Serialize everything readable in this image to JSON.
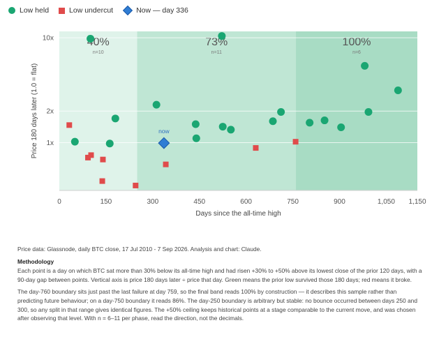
{
  "legend": {
    "held": "Low held",
    "undercut": "Low undercut",
    "now": "Now — day 336"
  },
  "colors": {
    "held": "#1aa672",
    "undercut": "#e04b4b",
    "now": "#2f7dd4",
    "band1": "#dff3ea",
    "band2": "#bfe6d4",
    "band3": "#a8dcc4"
  },
  "chart_data": {
    "type": "scatter",
    "xlabel": "Days since the all-time high",
    "ylabel": "Price 180 days later (1.0 = flat)",
    "xlim": [
      0,
      1150
    ],
    "ylim": [
      0.35,
      11.5
    ],
    "yscale": "log",
    "x_ticks": [
      0,
      150,
      300,
      450,
      600,
      750,
      900,
      1050,
      1150
    ],
    "x_tick_labels": [
      "0",
      "150",
      "300",
      "450",
      "600",
      "750",
      "900",
      "1,050",
      "1,150"
    ],
    "y_ticks": [
      1,
      2,
      10
    ],
    "y_tick_labels": [
      "1x",
      "2x",
      "10x"
    ],
    "bands": [
      {
        "from": 0,
        "to": 250,
        "pct": "40%",
        "n": "n=10"
      },
      {
        "from": 250,
        "to": 760,
        "pct": "73%",
        "n": "n=11"
      },
      {
        "from": 760,
        "to": 1150,
        "pct": "100%",
        "n": "n=6"
      }
    ],
    "series": [
      {
        "name": "Low held",
        "marker": "circle",
        "points": [
          [
            100,
            9.8
          ],
          [
            50,
            1.02
          ],
          [
            162,
            0.98
          ],
          [
            180,
            1.7
          ],
          [
            312,
            2.3
          ],
          [
            438,
            1.5
          ],
          [
            440,
            1.1
          ],
          [
            522,
            10.4
          ],
          [
            525,
            1.42
          ],
          [
            551,
            1.33
          ],
          [
            686,
            1.6
          ],
          [
            712,
            1.96
          ],
          [
            804,
            1.55
          ],
          [
            852,
            1.63
          ],
          [
            905,
            1.4
          ],
          [
            981,
            5.4
          ],
          [
            993,
            1.96
          ],
          [
            1088,
            3.15
          ]
        ]
      },
      {
        "name": "Low undercut",
        "marker": "square",
        "points": [
          [
            32,
            1.47
          ],
          [
            92,
            0.72
          ],
          [
            102,
            0.76
          ],
          [
            140,
            0.69
          ],
          [
            138,
            0.43
          ],
          [
            245,
            0.39
          ],
          [
            342,
            0.62
          ],
          [
            631,
            0.89
          ],
          [
            759,
            1.02
          ]
        ]
      },
      {
        "name": "Now — day 336",
        "marker": "diamond",
        "points": [
          [
            336,
            0.99
          ]
        ],
        "label": "now"
      }
    ]
  },
  "notes": {
    "source": "Price data: Glassnode, daily BTC close, 17 Jul 2010 - 7 Sep 2026. Analysis and chart: Claude.",
    "methodology_title": "Methodology",
    "para1": "Each point is a day on which BTC sat more than 30% below its all-time high and had risen +30% to +50% above its lowest close of the prior 120 days, with a 90-day gap between points. Vertical axis is price 180 days later ÷ price that day. Green means the prior low survived those 180 days; red means it broke.",
    "para2": "The day-760 boundary sits just past the last failure at day 759, so the final band reads 100% by construction — it describes this sample rather than predicting future behaviour; on a day-750 boundary it reads 86%. The day-250 boundary is arbitrary but stable: no bounce occurred between days 250 and 300, so any split in that range gives identical figures. The +50% ceiling keeps historical points at a stage comparable to the current move, and was chosen after observing that level. With n = 6–11 per phase, read the direction, not the decimals."
  }
}
